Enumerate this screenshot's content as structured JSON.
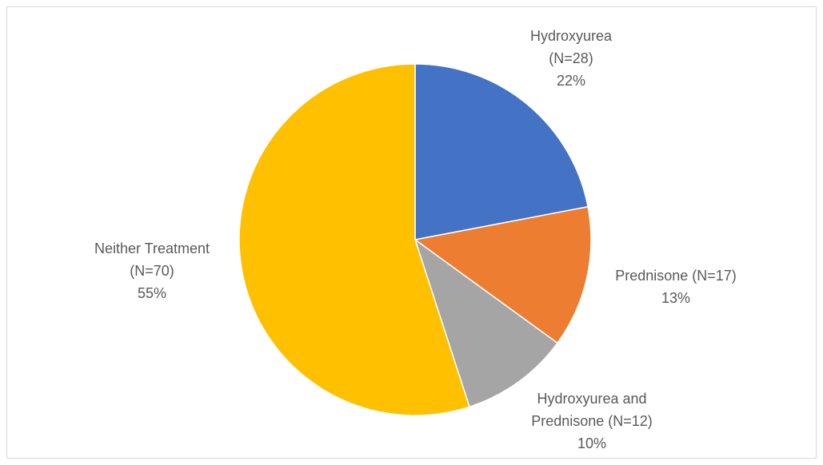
{
  "chart_data": {
    "type": "pie",
    "categories": [
      [
        "Hydroxyurea",
        "(N=28)"
      ],
      [
        "Prednisone (N=17)"
      ],
      [
        "Hydroxyurea and",
        "Prednisone (N=12)"
      ],
      [
        "Neither Treatment",
        "(N=70)"
      ]
    ],
    "values": [
      22,
      13,
      10,
      55
    ],
    "value_labels": [
      "22%",
      "13%",
      "10%",
      "55%"
    ],
    "colors": [
      "#4472c4",
      "#ed7d31",
      "#a5a5a5",
      "#ffc000"
    ]
  }
}
